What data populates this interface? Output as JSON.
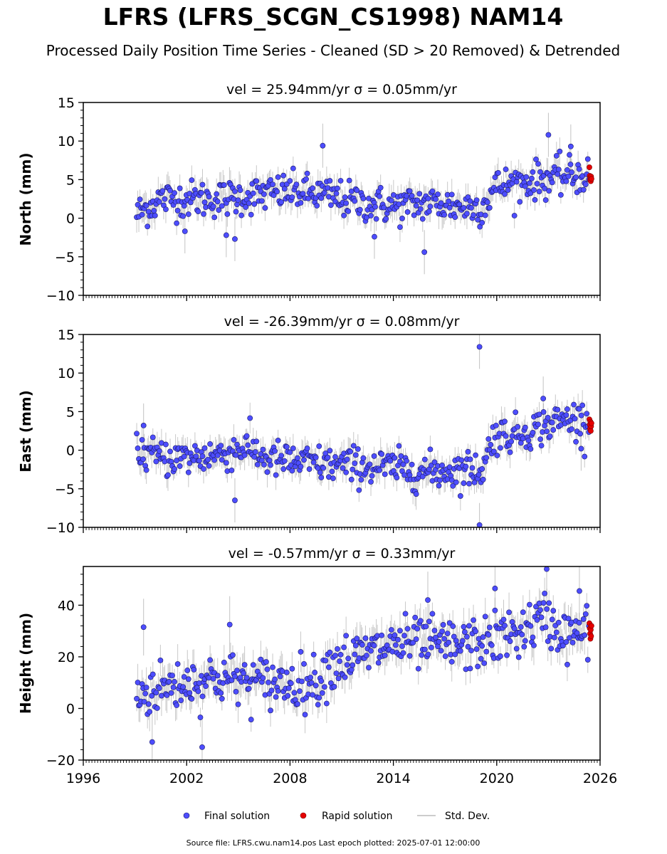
{
  "page": {
    "title": "LFRS (LFRS_SCGN_CS1998) NAM14",
    "subtitle": "Processed Daily Position Time Series - Cleaned (SD > 20 Removed) & Detrended",
    "footer": "Source file: LFRS.cwu.nam14.pos  Last epoch plotted: 2025-07-01 12:00:00"
  },
  "legend": {
    "final": "Final solution",
    "rapid": "Rapid solution",
    "std": "Std. Dev."
  },
  "colors": {
    "final_fill": "#4d4dff",
    "final_edge": "#1a1a66",
    "rapid_fill": "#e60000",
    "std": "#9a9a9a"
  },
  "x_tick_labels": [
    "1996",
    "2002",
    "2008",
    "2014",
    "2020",
    "2026"
  ],
  "chart_data": [
    {
      "type": "scatter",
      "title": "vel = 25.94mm/yr   σ = 0.05mm/yr",
      "ylabel": "North (mm)",
      "xlim": [
        1996,
        2026
      ],
      "ylim": [
        -10,
        15
      ],
      "yticks": [
        -10,
        -5,
        0,
        5,
        10,
        15
      ],
      "ytick_labels": [
        "−10",
        "−5",
        "0",
        "5",
        "10",
        "15"
      ],
      "trend": {
        "x": [
          1999.1,
          2000.5,
          2002.0,
          2004.0,
          2006.0,
          2008.0,
          2010.0,
          2012.0,
          2014.0,
          2016.0,
          2018.0,
          2019.2,
          2019.9,
          2021.0,
          2022.5,
          2024.0,
          2025.5
        ],
        "y": [
          0.5,
          2.5,
          2.5,
          2.5,
          3.0,
          3.5,
          3.0,
          2.0,
          1.5,
          2.0,
          1.5,
          1.5,
          4.0,
          4.5,
          5.0,
          5.5,
          5.5
        ]
      },
      "scatter_sd": 1.2,
      "std_len": 1.3,
      "outliers": {
        "x": [
          2009.9,
          2004.8,
          2004.3,
          2015.8,
          2023.0,
          2012.9,
          2001.9,
          2024.3
        ],
        "y": [
          9.4,
          -2.7,
          -2.2,
          -4.4,
          10.8,
          -2.4,
          -1.7,
          9.3
        ]
      },
      "rapid": {
        "x": [
          2025.38,
          2025.4,
          2025.42,
          2025.44,
          2025.46,
          2025.48,
          2025.5
        ],
        "y": [
          6.6,
          5.5,
          5.0,
          5.3,
          4.8,
          5.4,
          5.1
        ]
      }
    },
    {
      "type": "scatter",
      "title": "vel = -26.39mm/yr   σ = 0.08mm/yr",
      "ylabel": "East (mm)",
      "xlim": [
        1996,
        2026
      ],
      "ylim": [
        -10,
        15
      ],
      "yticks": [
        -10,
        -5,
        0,
        5,
        10,
        15
      ],
      "ytick_labels": [
        "−10",
        "−5",
        "0",
        "5",
        "10",
        "15"
      ],
      "trend": {
        "x": [
          1999.1,
          2000.5,
          2002.0,
          2004.0,
          2005.5,
          2006.5,
          2008.0,
          2010.0,
          2012.0,
          2014.0,
          2016.0,
          2018.0,
          2019.2,
          2019.8,
          2021.0,
          2022.5,
          2024.0,
          2025.5
        ],
        "y": [
          0.0,
          -1.0,
          -1.0,
          -0.5,
          0.5,
          -1.0,
          -1.5,
          -1.8,
          -2.0,
          -2.3,
          -2.8,
          -2.5,
          -2.5,
          2.0,
          2.0,
          3.0,
          4.0,
          4.0
        ]
      },
      "scatter_sd": 1.2,
      "std_len": 1.3,
      "outliers": {
        "x": [
          2019.0,
          2019.0,
          2004.8,
          1999.5,
          2022.7,
          2024.9
        ],
        "y": [
          13.4,
          -9.7,
          -6.5,
          3.2,
          6.7,
          0.2
        ]
      },
      "rapid": {
        "x": [
          2025.38,
          2025.4,
          2025.42,
          2025.44,
          2025.46,
          2025.48,
          2025.5
        ],
        "y": [
          4.0,
          3.3,
          2.8,
          3.7,
          2.5,
          3.1,
          3.5
        ]
      }
    },
    {
      "type": "scatter",
      "title": "vel = -0.57mm/yr   σ = 0.33mm/yr",
      "ylabel": "Height (mm)",
      "xlim": [
        1996,
        2026
      ],
      "ylim": [
        -20,
        55
      ],
      "yticks": [
        -20,
        0,
        20,
        40
      ],
      "ytick_labels": [
        "−20",
        "0",
        "20",
        "40"
      ],
      "trend": {
        "x": [
          1999.1,
          2000.5,
          2002.0,
          2004.0,
          2006.0,
          2008.0,
          2009.5,
          2010.5,
          2012.0,
          2014.0,
          2016.0,
          2018.0,
          2020.0,
          2021.5,
          2022.8,
          2024.0,
          2025.5
        ],
        "y": [
          5.0,
          8.0,
          10.0,
          12.0,
          10.0,
          10.0,
          10.0,
          18.0,
          20.0,
          25.0,
          25.0,
          24.0,
          27.0,
          30.0,
          35.0,
          28.0,
          30.0
        ]
      },
      "scatter_sd": 5.0,
      "std_len": 5.0,
      "outliers": {
        "x": [
          2022.9,
          2019.9,
          2002.9,
          2004.5,
          2000.0,
          1999.5,
          2016.0,
          2024.8
        ],
        "y": [
          54.0,
          46.5,
          -15.0,
          32.5,
          -13.0,
          31.5,
          42.0,
          45.5
        ]
      },
      "rapid": {
        "x": [
          2025.38,
          2025.4,
          2025.42,
          2025.44,
          2025.46,
          2025.48,
          2025.5
        ],
        "y": [
          33.0,
          31.0,
          29.0,
          27.0,
          30.5,
          28.0,
          32.0
        ]
      }
    }
  ]
}
